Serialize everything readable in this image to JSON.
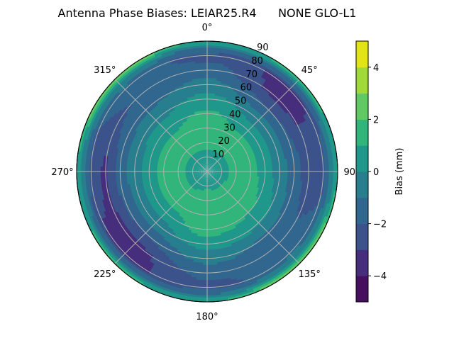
{
  "chart_data": {
    "type": "heatmap",
    "subtype": "polar-filled-contour",
    "title": "Antenna Phase Biases: LEIAR25.R4      NONE GLO-L1",
    "colorbar_label": "Bias (mm)",
    "colorbar_ticks": [
      "−4",
      "−2",
      "0",
      "2",
      "4"
    ],
    "colorbar_tick_values": [
      -4,
      -2,
      0,
      2,
      4
    ],
    "levels": [
      -5,
      -4,
      -3,
      -2,
      -1,
      0,
      1,
      2,
      3,
      4,
      5
    ],
    "level_colors": [
      "#46105f",
      "#472e7c",
      "#3b528b",
      "#31678e",
      "#277f8e",
      "#1f988b",
      "#31b57b",
      "#60c963",
      "#a0da39",
      "#e2e418"
    ],
    "colormap": "viridis",
    "angular_ticks": [
      "0°",
      "45°",
      "90°",
      "135°",
      "180°",
      "225°",
      "270°",
      "315°"
    ],
    "angular_tick_values": [
      0,
      45,
      90,
      135,
      180,
      225,
      270,
      315
    ],
    "angular_direction": "clockwise",
    "angular_zero": "north",
    "radial_ticks": [
      "10",
      "20",
      "30",
      "40",
      "50",
      "60",
      "70",
      "80",
      "90"
    ],
    "radial_tick_values": [
      10,
      20,
      30,
      40,
      50,
      60,
      70,
      80,
      90
    ],
    "rlim": [
      0,
      90
    ],
    "grid": true,
    "zenith": [
      0,
      10,
      20,
      30,
      40,
      50,
      60,
      70,
      80,
      85,
      90
    ],
    "azimuth": [
      0,
      45,
      90,
      135,
      180,
      225,
      270,
      315
    ],
    "values": [
      [
        0.5,
        0.5,
        1.5,
        1.5,
        1.2,
        0.4,
        -0.6,
        -1.5,
        -2.4,
        -1.2,
        1.0
      ],
      [
        0.5,
        0.6,
        1.4,
        1.3,
        0.5,
        -0.5,
        -2.0,
        -3.3,
        -3.3,
        -1.0,
        1.5
      ],
      [
        0.5,
        0.6,
        1.4,
        1.4,
        0.6,
        -0.5,
        -1.5,
        -2.5,
        -2.2,
        -0.8,
        1.0
      ],
      [
        0.5,
        0.7,
        1.5,
        1.5,
        1.1,
        0.2,
        -1.2,
        -1.8,
        -1.5,
        0.0,
        3.5
      ],
      [
        0.5,
        0.8,
        1.6,
        1.6,
        1.5,
        0.5,
        -0.6,
        -1.6,
        -2.4,
        -1.0,
        1.0
      ],
      [
        0.5,
        0.6,
        1.4,
        1.3,
        0.5,
        -0.5,
        -2.0,
        -3.3,
        -3.3,
        -1.0,
        1.5
      ],
      [
        0.5,
        0.6,
        1.4,
        1.4,
        0.6,
        -0.5,
        -1.5,
        -3.2,
        -2.5,
        -0.8,
        1.0
      ],
      [
        0.5,
        0.5,
        1.4,
        1.3,
        0.6,
        -0.4,
        -1.3,
        -2.0,
        -1.5,
        0.0,
        3.5
      ]
    ]
  }
}
